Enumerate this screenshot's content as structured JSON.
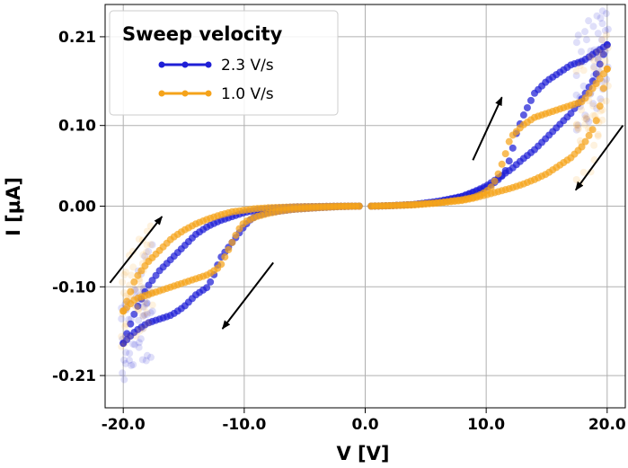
{
  "chart_data": {
    "type": "scatter",
    "title": "",
    "xlabel": "V [V]",
    "ylabel": "I [µA]",
    "xlim": [
      -21.5,
      21.5
    ],
    "ylim": [
      -0.25,
      0.25
    ],
    "x_ticks": [
      -20.0,
      -10.0,
      0.0,
      10.0,
      20.0
    ],
    "x_tick_labels": [
      "-20.0",
      "-10.0",
      "0.0",
      "10.0",
      "20.0"
    ],
    "y_ticks": [
      -0.21,
      -0.1,
      0.0,
      0.1,
      0.21
    ],
    "y_tick_labels": [
      "-0.21",
      "-0.10",
      "0.00",
      "0.10",
      "0.21"
    ],
    "grid": true,
    "legend": {
      "title": "Sweep velocity",
      "position": "upper-left"
    },
    "series": [
      {
        "name": "2.3 V/s",
        "color": "#1f1fd6",
        "branches": [
          {
            "label": "forward up",
            "x": [
              0.5,
              2,
              4,
              6,
              7,
              8,
              9,
              9.5,
              10,
              10.5,
              11,
              11.5,
              12,
              12.5,
              13,
              14,
              15,
              16,
              17,
              18,
              19,
              20
            ],
            "y": [
              0.0,
              0.0005,
              0.002,
              0.005,
              0.008,
              0.012,
              0.017,
              0.02,
              0.023,
              0.027,
              0.033,
              0.04,
              0.06,
              0.09,
              0.11,
              0.14,
              0.155,
              0.165,
              0.175,
              0.18,
              0.19,
              0.2
            ]
          },
          {
            "label": "return from +20",
            "x": [
              20,
              19.5,
              19,
              18,
              17,
              16,
              15,
              14,
              13,
              12,
              11,
              10,
              9,
              8,
              6,
              4,
              2,
              0.5
            ],
            "y": [
              0.2,
              0.18,
              0.16,
              0.135,
              0.115,
              0.1,
              0.085,
              0.07,
              0.058,
              0.045,
              0.035,
              0.025,
              0.018,
              0.012,
              0.006,
              0.002,
              0.0005,
              0.0
            ]
          },
          {
            "label": "reverse down",
            "x": [
              -0.5,
              -2,
              -4,
              -6,
              -7,
              -8,
              -9,
              -9.5,
              -10,
              -10.5,
              -11,
              -11.5,
              -12,
              -12.5,
              -13,
              -14,
              -15,
              -16,
              -17,
              -18,
              -19,
              -20
            ],
            "y": [
              0.0,
              -0.0005,
              -0.002,
              -0.004,
              -0.006,
              -0.008,
              -0.012,
              -0.017,
              -0.025,
              -0.035,
              -0.045,
              -0.055,
              -0.065,
              -0.085,
              -0.1,
              -0.11,
              -0.125,
              -0.135,
              -0.14,
              -0.145,
              -0.155,
              -0.17
            ]
          },
          {
            "label": "return from -20",
            "x": [
              -20,
              -19.5,
              -19,
              -18,
              -17,
              -16,
              -15,
              -14,
              -13,
              -12,
              -11,
              -10,
              -9,
              -8,
              -6,
              -4,
              -2,
              -0.5
            ],
            "y": [
              -0.17,
              -0.15,
              -0.13,
              -0.1,
              -0.08,
              -0.065,
              -0.05,
              -0.035,
              -0.025,
              -0.018,
              -0.013,
              -0.008,
              -0.005,
              -0.003,
              -0.001,
              -0.0005,
              0.0,
              0.0
            ]
          }
        ]
      },
      {
        "name": "1.0 V/s",
        "color": "#f5a31a",
        "branches": [
          {
            "label": "forward up",
            "x": [
              0.5,
              2,
              4,
              6,
              7,
              8,
              9,
              9.5,
              10,
              10.5,
              11,
              11.5,
              12,
              13,
              14,
              15,
              16,
              17,
              18,
              19,
              20
            ],
            "y": [
              0.0,
              0.0005,
              0.002,
              0.004,
              0.006,
              0.008,
              0.011,
              0.014,
              0.018,
              0.025,
              0.04,
              0.06,
              0.085,
              0.1,
              0.11,
              0.115,
              0.12,
              0.125,
              0.13,
              0.15,
              0.17
            ]
          },
          {
            "label": "return from +20",
            "x": [
              20,
              19.5,
              19,
              18,
              17,
              16,
              15,
              14,
              13,
              12,
              11,
              10,
              9,
              8,
              6,
              4,
              2,
              0.5
            ],
            "y": [
              0.17,
              0.13,
              0.1,
              0.075,
              0.06,
              0.05,
              0.04,
              0.033,
              0.027,
              0.022,
              0.018,
              0.014,
              0.01,
              0.007,
              0.004,
              0.0015,
              0.0005,
              0.0
            ]
          },
          {
            "label": "reverse down",
            "x": [
              -0.5,
              -2,
              -4,
              -6,
              -7,
              -8,
              -9,
              -10,
              -10.5,
              -11,
              -11.5,
              -12,
              -13,
              -14,
              -15,
              -16,
              -17,
              -18,
              -19,
              -20
            ],
            "y": [
              0.0,
              -0.0005,
              -0.002,
              -0.004,
              -0.006,
              -0.009,
              -0.013,
              -0.02,
              -0.03,
              -0.045,
              -0.06,
              -0.075,
              -0.085,
              -0.09,
              -0.095,
              -0.1,
              -0.105,
              -0.11,
              -0.115,
              -0.13
            ]
          },
          {
            "label": "return from -20",
            "x": [
              -20,
              -19.5,
              -19,
              -18,
              -17,
              -16,
              -15,
              -14,
              -13,
              -12,
              -11,
              -10,
              -9,
              -8,
              -6,
              -4,
              -2,
              -0.5
            ],
            "y": [
              -0.13,
              -0.11,
              -0.09,
              -0.07,
              -0.055,
              -0.04,
              -0.03,
              -0.022,
              -0.016,
              -0.011,
              -0.007,
              -0.005,
              -0.003,
              -0.002,
              -0.001,
              -0.0005,
              0.0,
              0.0
            ]
          }
        ]
      }
    ],
    "arrows": [
      {
        "name": "arrow-upper-right-up",
        "from": [
          8.9,
          0.057
        ],
        "to": [
          11.3,
          0.135
        ]
      },
      {
        "name": "arrow-upper-right-down",
        "from": [
          21.3,
          0.1
        ],
        "to": [
          17.4,
          0.02
        ]
      },
      {
        "name": "arrow-lower-left-up",
        "from": [
          -21.1,
          -0.095
        ],
        "to": [
          -16.8,
          -0.013
        ]
      },
      {
        "name": "arrow-lower-left-down",
        "from": [
          -7.6,
          -0.07
        ],
        "to": [
          -11.8,
          -0.152
        ]
      }
    ]
  }
}
